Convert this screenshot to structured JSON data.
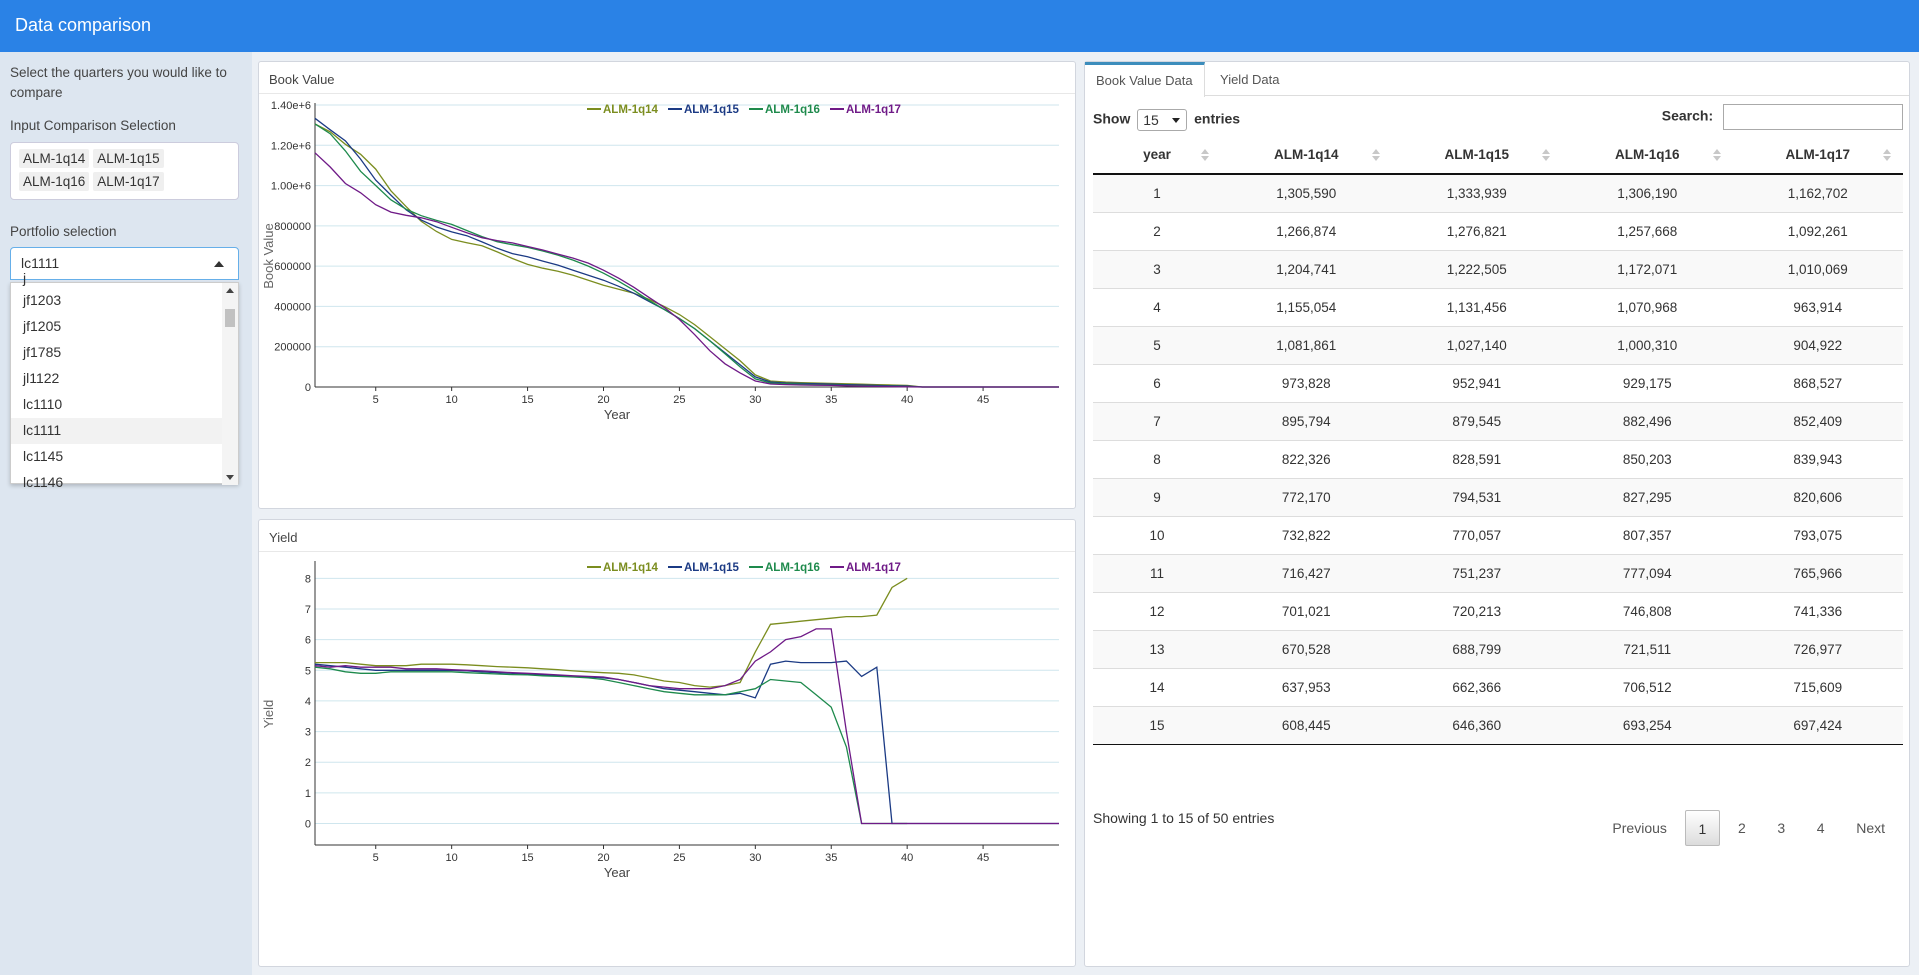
{
  "header": {
    "title": "Data comparison"
  },
  "sidebar": {
    "intro": "Select the quarters you would like to compare",
    "comparison_label": "Input Comparison Selection",
    "selected_quarters": [
      "ALM-1q14",
      "ALM-1q15",
      "ALM-1q16",
      "ALM-1q17"
    ],
    "portfolio_label": "Portfolio selection",
    "portfolio_value": "lc1111",
    "dropdown_partial_top": "j",
    "dropdown_items": [
      "jf1203",
      "jf1205",
      "jf1785",
      "jl1122",
      "lc1110",
      "lc1111",
      "lc1145"
    ],
    "dropdown_partial_bottom": "lc1146",
    "selected_item": "lc1111"
  },
  "series_colors": {
    "ALM-1q14": "#7b8d1f",
    "ALM-1q15": "#1b3a84",
    "ALM-1q16": "#1e8a4c",
    "ALM-1q17": "#6f1a87"
  },
  "icons": {
    "select_caret": "caret-up-icon",
    "scroll_up": "arrow-up-icon",
    "scroll_down": "arrow-down-icon",
    "sort": "sort-icon"
  },
  "book_chart": {
    "panel_title": "Book Value",
    "chart_data": {
      "type": "line",
      "title": "",
      "xlabel": "Year",
      "ylabel": "Book Value",
      "xlim": [
        1,
        50
      ],
      "ylim": [
        0,
        1400000
      ],
      "xticks": [
        5,
        10,
        15,
        20,
        25,
        30,
        35,
        40,
        45
      ],
      "yticks": [
        0,
        200000,
        400000,
        600000,
        800000,
        1000000,
        1200000,
        1400000
      ],
      "ytick_labels": [
        "0",
        "200000",
        "400000",
        "600000",
        "800000",
        "1.00e+6",
        "1.20e+6",
        "1.40e+6"
      ],
      "grid": true,
      "legend": "top-center",
      "x": [
        1,
        2,
        3,
        4,
        5,
        6,
        7,
        8,
        9,
        10,
        11,
        12,
        13,
        14,
        15,
        16,
        17,
        18,
        19,
        20,
        21,
        22,
        23,
        24,
        25,
        26,
        27,
        28,
        29,
        30,
        31,
        32,
        33,
        34,
        35,
        36,
        37,
        38,
        39,
        40,
        41,
        42,
        43,
        44,
        45,
        46,
        47,
        48,
        49,
        50
      ],
      "series": [
        {
          "name": "ALM-1q14",
          "values": [
            1305590,
            1266874,
            1204741,
            1155054,
            1081861,
            973828,
            895794,
            822326,
            772170,
            732822,
            716427,
            701021,
            670528,
            637953,
            608445,
            590000,
            575000,
            555000,
            530000,
            505000,
            485000,
            465000,
            435000,
            400000,
            360000,
            310000,
            250000,
            190000,
            130000,
            60000,
            30000,
            25000,
            22000,
            20000,
            18000,
            16000,
            14000,
            12000,
            10000,
            8000,
            0,
            0,
            0,
            0,
            0,
            0,
            0,
            0,
            0,
            0
          ]
        },
        {
          "name": "ALM-1q15",
          "values": [
            1333939,
            1276821,
            1222505,
            1131456,
            1027140,
            952941,
            879545,
            828591,
            794531,
            770057,
            751237,
            720213,
            688799,
            662366,
            646360,
            625000,
            605000,
            580000,
            555000,
            530000,
            500000,
            465000,
            425000,
            385000,
            340000,
            290000,
            230000,
            170000,
            110000,
            50000,
            25000,
            20000,
            18000,
            16000,
            14000,
            12000,
            10000,
            8000,
            6000,
            5000,
            0,
            0,
            0,
            0,
            0,
            0,
            0,
            0,
            0,
            0
          ]
        },
        {
          "name": "ALM-1q16",
          "values": [
            1306190,
            1257668,
            1172071,
            1070968,
            1000310,
            929175,
            882496,
            850203,
            827295,
            807357,
            777094,
            746808,
            721511,
            706512,
            693254,
            675000,
            655000,
            630000,
            600000,
            565000,
            525000,
            480000,
            430000,
            385000,
            340000,
            290000,
            230000,
            165000,
            100000,
            40000,
            20000,
            16000,
            14000,
            12000,
            10000,
            8000,
            6000,
            4000,
            3000,
            2000,
            0,
            0,
            0,
            0,
            0,
            0,
            0,
            0,
            0,
            0
          ]
        },
        {
          "name": "ALM-1q17",
          "values": [
            1162702,
            1092261,
            1010069,
            963914,
            904922,
            868527,
            852409,
            839943,
            820606,
            793075,
            765966,
            741336,
            726977,
            715609,
            697424,
            680000,
            660000,
            640000,
            615000,
            580000,
            540000,
            495000,
            445000,
            395000,
            335000,
            260000,
            180000,
            115000,
            70000,
            30000,
            15000,
            12000,
            10000,
            9000,
            8000,
            6000,
            4000,
            3000,
            2000,
            1000,
            0,
            0,
            0,
            0,
            0,
            0,
            0,
            0,
            0,
            0
          ]
        }
      ]
    }
  },
  "yield_chart": {
    "panel_title": "Yield",
    "chart_data": {
      "type": "line",
      "title": "",
      "xlabel": "Year",
      "ylabel": "Yield",
      "xlim": [
        1,
        50
      ],
      "ylim": [
        -0.7,
        8.5
      ],
      "xticks": [
        5,
        10,
        15,
        20,
        25,
        30,
        35,
        40,
        45
      ],
      "yticks": [
        0,
        1,
        2,
        3,
        4,
        5,
        6,
        7,
        8
      ],
      "grid": true,
      "legend": "top-center",
      "series": [
        {
          "name": "ALM-1q14",
          "x": [
            1,
            2,
            3,
            4,
            5,
            6,
            7,
            8,
            9,
            10,
            11,
            12,
            13,
            14,
            15,
            16,
            17,
            18,
            19,
            20,
            21,
            22,
            23,
            24,
            25,
            26,
            27,
            28,
            29,
            30,
            31,
            32,
            33,
            34,
            35,
            36,
            37,
            38,
            39,
            40
          ],
          "values": [
            5.25,
            5.25,
            5.25,
            5.2,
            5.15,
            5.15,
            5.15,
            5.2,
            5.2,
            5.2,
            5.18,
            5.15,
            5.12,
            5.1,
            5.08,
            5.05,
            5.02,
            4.98,
            4.95,
            4.92,
            4.9,
            4.85,
            4.75,
            4.65,
            4.6,
            4.5,
            4.45,
            4.5,
            4.6,
            5.6,
            6.5,
            6.55,
            6.6,
            6.65,
            6.7,
            6.75,
            6.75,
            6.8,
            7.7,
            8.0
          ]
        },
        {
          "name": "ALM-1q15",
          "x": [
            1,
            2,
            3,
            4,
            5,
            6,
            7,
            8,
            9,
            10,
            11,
            12,
            13,
            14,
            15,
            16,
            17,
            18,
            19,
            20,
            21,
            22,
            23,
            24,
            25,
            26,
            27,
            28,
            29,
            30,
            31,
            32,
            33,
            34,
            35,
            36,
            37,
            38,
            39,
            40,
            41,
            42,
            43,
            44,
            45,
            46,
            47,
            48,
            49,
            50
          ],
          "values": [
            5.2,
            5.15,
            5.1,
            5.05,
            5.0,
            5.0,
            5.0,
            5.0,
            5.0,
            5.0,
            4.98,
            4.95,
            4.92,
            4.9,
            4.88,
            4.85,
            4.82,
            4.8,
            4.78,
            4.75,
            4.7,
            4.6,
            4.5,
            4.4,
            4.35,
            4.3,
            4.25,
            4.2,
            4.25,
            4.1,
            5.2,
            5.3,
            5.25,
            5.25,
            5.25,
            5.3,
            4.8,
            5.1,
            0,
            0,
            0,
            0,
            0,
            0,
            0,
            0,
            0,
            0,
            0,
            0
          ]
        },
        {
          "name": "ALM-1q16",
          "x": [
            1,
            2,
            3,
            4,
            5,
            6,
            7,
            8,
            9,
            10,
            11,
            12,
            13,
            14,
            15,
            16,
            17,
            18,
            19,
            20,
            21,
            22,
            23,
            24,
            25,
            26,
            27,
            28,
            29,
            30,
            31,
            32,
            33,
            34,
            35,
            36,
            37,
            38,
            39,
            40
          ],
          "values": [
            5.1,
            5.05,
            4.95,
            4.9,
            4.9,
            4.95,
            4.95,
            4.95,
            4.95,
            4.95,
            4.92,
            4.9,
            4.88,
            4.86,
            4.85,
            4.82,
            4.8,
            4.78,
            4.75,
            4.7,
            4.6,
            4.5,
            4.4,
            4.3,
            4.25,
            4.2,
            4.2,
            4.2,
            4.3,
            4.4,
            4.7,
            4.65,
            4.6,
            4.2,
            3.8,
            2.5,
            0,
            0,
            0,
            0
          ]
        },
        {
          "name": "ALM-1q17",
          "x": [
            1,
            2,
            3,
            4,
            5,
            6,
            7,
            8,
            9,
            10,
            11,
            12,
            13,
            14,
            15,
            16,
            17,
            18,
            19,
            20,
            21,
            22,
            23,
            24,
            25,
            26,
            27,
            28,
            29,
            30,
            31,
            32,
            33,
            34,
            35,
            36,
            37,
            38,
            39,
            40,
            41,
            42,
            43,
            44,
            45,
            46,
            47,
            48,
            49,
            50
          ],
          "values": [
            5.15,
            5.1,
            5.15,
            5.1,
            5.1,
            5.1,
            5.05,
            5.05,
            5.05,
            5.02,
            5.0,
            4.98,
            4.95,
            4.92,
            4.9,
            4.88,
            4.85,
            4.82,
            4.8,
            4.78,
            4.7,
            4.6,
            4.5,
            4.45,
            4.4,
            4.4,
            4.4,
            4.5,
            4.7,
            5.3,
            5.6,
            6.0,
            6.1,
            6.35,
            6.35,
            3.0,
            0,
            0,
            0,
            0,
            0,
            0,
            0,
            0,
            0,
            0,
            0,
            0,
            0,
            0
          ]
        }
      ]
    }
  },
  "table_panel": {
    "tabs": [
      "Book Value Data",
      "Yield Data"
    ],
    "active_tab": 0,
    "show_label": "Show",
    "page_length": "15",
    "entries_label": "entries",
    "search_label": "Search:",
    "search_value": "",
    "columns": [
      "year",
      "ALM-1q14",
      "ALM-1q15",
      "ALM-1q16",
      "ALM-1q17"
    ],
    "rows": [
      [
        "1",
        "1,305,590",
        "1,333,939",
        "1,306,190",
        "1,162,702"
      ],
      [
        "2",
        "1,266,874",
        "1,276,821",
        "1,257,668",
        "1,092,261"
      ],
      [
        "3",
        "1,204,741",
        "1,222,505",
        "1,172,071",
        "1,010,069"
      ],
      [
        "4",
        "1,155,054",
        "1,131,456",
        "1,070,968",
        "963,914"
      ],
      [
        "5",
        "1,081,861",
        "1,027,140",
        "1,000,310",
        "904,922"
      ],
      [
        "6",
        "973,828",
        "952,941",
        "929,175",
        "868,527"
      ],
      [
        "7",
        "895,794",
        "879,545",
        "882,496",
        "852,409"
      ],
      [
        "8",
        "822,326",
        "828,591",
        "850,203",
        "839,943"
      ],
      [
        "9",
        "772,170",
        "794,531",
        "827,295",
        "820,606"
      ],
      [
        "10",
        "732,822",
        "770,057",
        "807,357",
        "793,075"
      ],
      [
        "11",
        "716,427",
        "751,237",
        "777,094",
        "765,966"
      ],
      [
        "12",
        "701,021",
        "720,213",
        "746,808",
        "741,336"
      ],
      [
        "13",
        "670,528",
        "688,799",
        "721,511",
        "726,977"
      ],
      [
        "14",
        "637,953",
        "662,366",
        "706,512",
        "715,609"
      ],
      [
        "15",
        "608,445",
        "646,360",
        "693,254",
        "697,424"
      ]
    ],
    "info": "Showing 1 to 15 of 50 entries",
    "pagination": [
      "Previous",
      "1",
      "2",
      "3",
      "4",
      "Next"
    ],
    "current_page": "1"
  }
}
